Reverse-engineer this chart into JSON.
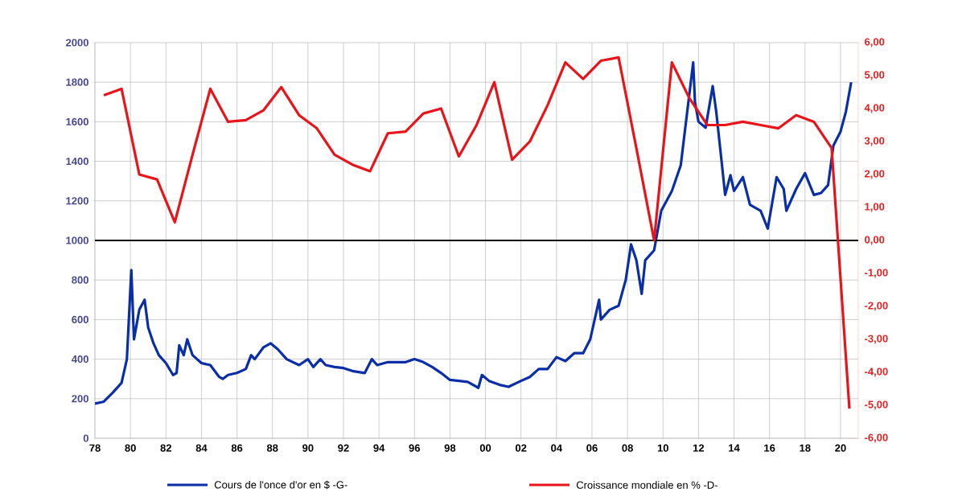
{
  "chart_data": {
    "type": "line",
    "xlim": [
      1978,
      2021
    ],
    "ylim": [
      0,
      2000
    ],
    "y2lim": [
      -6,
      6
    ],
    "xticks": [
      {
        "value": 1978,
        "label": "78"
      },
      {
        "value": 1980,
        "label": "80"
      },
      {
        "value": 1982,
        "label": "82"
      },
      {
        "value": 1984,
        "label": "84"
      },
      {
        "value": 1986,
        "label": "86"
      },
      {
        "value": 1988,
        "label": "88"
      },
      {
        "value": 1990,
        "label": "90"
      },
      {
        "value": 1992,
        "label": "92"
      },
      {
        "value": 1994,
        "label": "94"
      },
      {
        "value": 1996,
        "label": "96"
      },
      {
        "value": 1998,
        "label": "98"
      },
      {
        "value": 2000,
        "label": "00"
      },
      {
        "value": 2002,
        "label": "02"
      },
      {
        "value": 2004,
        "label": "04"
      },
      {
        "value": 2006,
        "label": "06"
      },
      {
        "value": 2008,
        "label": "08"
      },
      {
        "value": 2010,
        "label": "10"
      },
      {
        "value": 2012,
        "label": "12"
      },
      {
        "value": 2014,
        "label": "14"
      },
      {
        "value": 2016,
        "label": "16"
      },
      {
        "value": 2018,
        "label": "18"
      },
      {
        "value": 2020,
        "label": "20"
      }
    ],
    "yticks": [
      0,
      200,
      400,
      600,
      800,
      1000,
      1200,
      1400,
      1600,
      1800,
      2000
    ],
    "y2ticks": [
      {
        "value": 6,
        "label": "6,00"
      },
      {
        "value": 5,
        "label": "5,00"
      },
      {
        "value": 4,
        "label": "4,00"
      },
      {
        "value": 3,
        "label": "3,00"
      },
      {
        "value": 2,
        "label": "2,00"
      },
      {
        "value": 1,
        "label": "1,00"
      },
      {
        "value": 0,
        "label": "0,00"
      },
      {
        "value": -1,
        "label": "-1,00"
      },
      {
        "value": -2,
        "label": "-2,00"
      },
      {
        "value": -3,
        "label": "-3,00"
      },
      {
        "value": -4,
        "label": "-4,00"
      },
      {
        "value": -5,
        "label": "-5,00"
      },
      {
        "value": -6,
        "label": "-6,00"
      }
    ],
    "grid": true,
    "legend": "bottom",
    "marker": "none",
    "line_style": "solid",
    "ref_lines": [
      {
        "axis": "y",
        "value": 1000,
        "color": "#000000"
      }
    ],
    "series": [
      {
        "name": "Cours de l'once d'or en $ -G-",
        "color": "#0a2ea8",
        "x": [
          1978.0,
          1978.5,
          1979.0,
          1979.5,
          1979.8,
          1980.05,
          1980.2,
          1980.5,
          1980.8,
          1981.0,
          1981.3,
          1981.6,
          1982.0,
          1982.4,
          1982.6,
          1982.75,
          1983.0,
          1983.2,
          1983.5,
          1984.0,
          1984.5,
          1985.0,
          1985.2,
          1985.5,
          1986.0,
          1986.5,
          1986.8,
          1987.0,
          1987.5,
          1987.9,
          1988.3,
          1988.8,
          1989.5,
          1990.0,
          1990.3,
          1990.7,
          1991.0,
          1991.5,
          1992.0,
          1992.5,
          1993.2,
          1993.6,
          1993.9,
          1994.5,
          1995.5,
          1996.0,
          1996.5,
          1997.0,
          1997.5,
          1998.0,
          1998.5,
          1999.0,
          1999.6,
          1999.8,
          2000.2,
          2000.8,
          2001.3,
          2002.0,
          2002.5,
          2003.0,
          2003.5,
          2004.0,
          2004.5,
          2005.0,
          2005.5,
          2005.9,
          2006.4,
          2006.5,
          2007.0,
          2007.5,
          2007.9,
          2008.2,
          2008.5,
          2008.8,
          2009.0,
          2009.5,
          2009.9,
          2010.5,
          2011.0,
          2011.7,
          2011.8,
          2012.0,
          2012.4,
          2012.8,
          2013.0,
          2013.3,
          2013.5,
          2013.8,
          2014.0,
          2014.5,
          2014.9,
          2015.5,
          2015.9,
          2016.4,
          2016.8,
          2016.95,
          2017.5,
          2018.0,
          2018.5,
          2018.9,
          2019.3,
          2019.6,
          2020.0,
          2020.3,
          2020.6
        ],
        "values": [
          175,
          185,
          230,
          280,
          400,
          850,
          500,
          650,
          700,
          560,
          480,
          420,
          380,
          320,
          330,
          470,
          420,
          500,
          420,
          380,
          370,
          310,
          300,
          320,
          330,
          350,
          420,
          400,
          460,
          480,
          450,
          400,
          370,
          400,
          360,
          400,
          370,
          360,
          355,
          340,
          330,
          400,
          370,
          385,
          385,
          400,
          385,
          360,
          330,
          295,
          290,
          285,
          255,
          320,
          290,
          270,
          260,
          290,
          310,
          350,
          350,
          410,
          390,
          430,
          430,
          500,
          700,
          600,
          650,
          670,
          800,
          980,
          900,
          730,
          900,
          950,
          1150,
          1250,
          1380,
          1900,
          1700,
          1600,
          1570,
          1780,
          1650,
          1400,
          1230,
          1330,
          1250,
          1320,
          1180,
          1150,
          1060,
          1320,
          1260,
          1150,
          1260,
          1340,
          1230,
          1240,
          1280,
          1480,
          1550,
          1650,
          1800
        ]
      },
      {
        "name": "Croissance mondiale en % -D-",
        "color": "#e8141a",
        "axis": "y2",
        "x": [
          1978.5,
          1979.5,
          1980.5,
          1981.5,
          1982.5,
          1983.5,
          1984.5,
          1985.5,
          1986.5,
          1987.5,
          1988.5,
          1989.5,
          1990.5,
          1991.5,
          1992.5,
          1993.5,
          1994.5,
          1995.5,
          1996.5,
          1997.5,
          1998.5,
          1999.5,
          2000.5,
          2001.5,
          2002.5,
          2003.5,
          2004.5,
          2005.5,
          2006.5,
          2007.5,
          2008.5,
          2009.5,
          2010.5,
          2011.5,
          2012.5,
          2013.5,
          2014.5,
          2015.5,
          2016.5,
          2017.5,
          2018.5,
          2019.5,
          2020.5
        ],
        "values": [
          4.4,
          4.6,
          2.0,
          1.85,
          0.55,
          2.6,
          4.6,
          3.6,
          3.65,
          3.95,
          4.65,
          3.8,
          3.4,
          2.6,
          2.3,
          2.1,
          3.25,
          3.3,
          3.85,
          4.0,
          2.55,
          3.5,
          4.8,
          2.45,
          3.0,
          4.1,
          5.4,
          4.9,
          5.45,
          5.55,
          2.8,
          0.0,
          5.4,
          4.3,
          3.5,
          3.5,
          3.6,
          3.5,
          3.4,
          3.8,
          3.6,
          2.8,
          -5.1
        ]
      }
    ]
  }
}
